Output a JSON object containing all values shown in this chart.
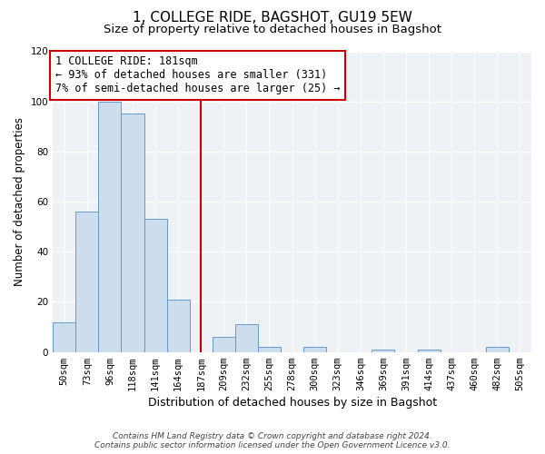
{
  "title": "1, COLLEGE RIDE, BAGSHOT, GU19 5EW",
  "subtitle": "Size of property relative to detached houses in Bagshot",
  "xlabel": "Distribution of detached houses by size in Bagshot",
  "ylabel": "Number of detached properties",
  "bin_labels": [
    "50sqm",
    "73sqm",
    "96sqm",
    "118sqm",
    "141sqm",
    "164sqm",
    "187sqm",
    "209sqm",
    "232sqm",
    "255sqm",
    "278sqm",
    "300sqm",
    "323sqm",
    "346sqm",
    "369sqm",
    "391sqm",
    "414sqm",
    "437sqm",
    "460sqm",
    "482sqm",
    "505sqm"
  ],
  "bar_heights": [
    12,
    56,
    100,
    95,
    53,
    21,
    0,
    6,
    11,
    2,
    0,
    2,
    0,
    0,
    1,
    0,
    1,
    0,
    0,
    2,
    0
  ],
  "bar_color": "#ccdded",
  "bar_edge_color": "#6699cc",
  "vline_color": "#cc0000",
  "annotation_line1": "1 COLLEGE RIDE: 181sqm",
  "annotation_line2": "← 93% of detached houses are smaller (331)",
  "annotation_line3": "7% of semi-detached houses are larger (25) →",
  "annotation_box_color": "#ffffff",
  "annotation_box_edge": "#cc0000",
  "ylim": [
    0,
    120
  ],
  "yticks": [
    0,
    20,
    40,
    60,
    80,
    100,
    120
  ],
  "plot_bg_color": "#eef2f7",
  "footer1": "Contains HM Land Registry data © Crown copyright and database right 2024.",
  "footer2": "Contains public sector information licensed under the Open Government Licence v3.0.",
  "title_fontsize": 11,
  "subtitle_fontsize": 9.5,
  "xlabel_fontsize": 9,
  "ylabel_fontsize": 8.5,
  "tick_fontsize": 7.5,
  "annotation_fontsize": 8.5,
  "footer_fontsize": 6.5
}
